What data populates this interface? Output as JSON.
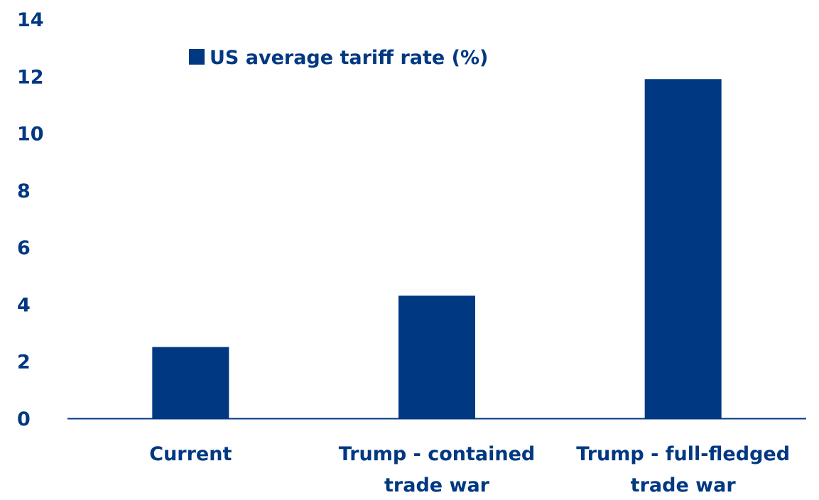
{
  "chart_data": {
    "type": "bar",
    "categories": [
      "Current",
      "Trump - contained trade war",
      "Trump - full-fledged trade war"
    ],
    "category_label_lines": [
      [
        "Current"
      ],
      [
        "Trump - contained",
        "trade war"
      ],
      [
        "Trump - full-fledged",
        "trade war"
      ]
    ],
    "series": [
      {
        "name": "US average tariff rate (%)",
        "values": [
          2.5,
          4.3,
          11.9
        ]
      }
    ],
    "title": "",
    "xlabel": "",
    "ylabel": "",
    "ylim": [
      0,
      14
    ],
    "yticks": [
      0,
      2,
      4,
      6,
      8,
      10,
      12,
      14
    ],
    "grid": false,
    "legend": "top-left",
    "colors": {
      "bar": "#003882",
      "text": "#003882",
      "axis": "#003882"
    }
  }
}
